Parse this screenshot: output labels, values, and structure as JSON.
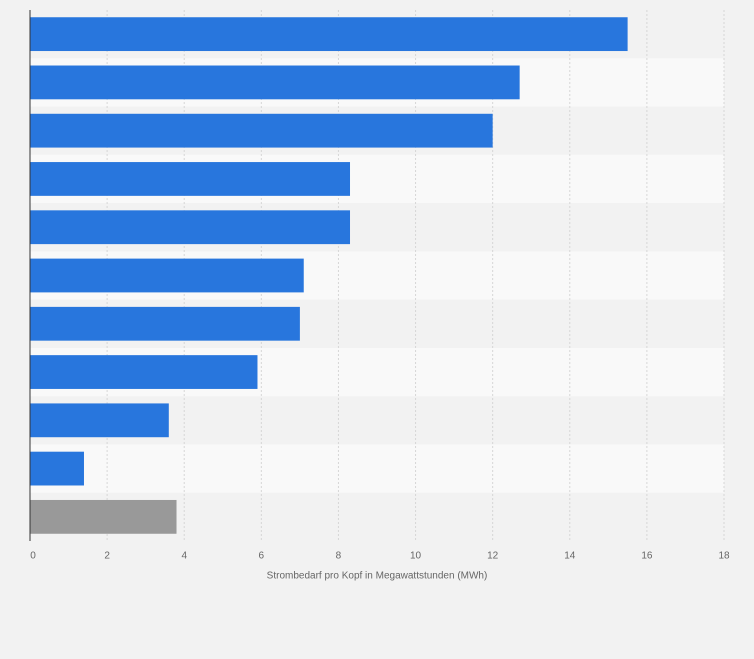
{
  "chart_data": {
    "type": "hbar",
    "x_label": "Strombedarf pro Kopf in Megawattstunden (MWh)",
    "categories": [
      null,
      null,
      null,
      null,
      null,
      null,
      null,
      null,
      null,
      null,
      null
    ],
    "values": [
      15.5,
      12.7,
      12.0,
      8.3,
      8.3,
      7.1,
      7.0,
      5.9,
      3.6,
      1.4,
      3.8
    ],
    "colors": [
      "#2876dd",
      "#2876dd",
      "#2876dd",
      "#2876dd",
      "#2876dd",
      "#2876dd",
      "#2876dd",
      "#2876dd",
      "#2876dd",
      "#2876dd",
      "#999999"
    ],
    "xlim": [
      0,
      18
    ],
    "xticks": [
      0,
      2,
      4,
      6,
      8,
      10,
      12,
      14,
      16,
      18
    ],
    "grid": true
  }
}
